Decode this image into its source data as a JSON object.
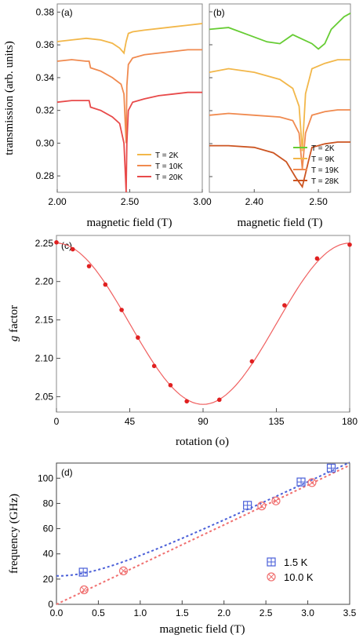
{
  "chart_data": [
    {
      "panel": "(a)",
      "type": "line",
      "xlabel": "magnetic field (T)",
      "ylabel": "transmission (arb. units)",
      "xlim": [
        2.0,
        3.0
      ],
      "ylim": [
        0.27,
        0.385
      ],
      "xticks": [
        "2.00",
        "2.50",
        "3.00"
      ],
      "yticks": [
        "0.28",
        "0.30",
        "0.32",
        "0.34",
        "0.36",
        "0.38"
      ],
      "legend": "bottom-right",
      "series": [
        {
          "name": "T = 2K",
          "color": "#f2b74a",
          "x": [
            2.0,
            2.1,
            2.2,
            2.3,
            2.38,
            2.43,
            2.46,
            2.475,
            2.49,
            2.52,
            2.6,
            2.7,
            2.8,
            2.9,
            3.0
          ],
          "y": [
            0.362,
            0.363,
            0.364,
            0.363,
            0.361,
            0.358,
            0.355,
            0.362,
            0.367,
            0.368,
            0.369,
            0.37,
            0.371,
            0.372,
            0.373
          ]
        },
        {
          "name": "T = 10K",
          "color": "#f08a4f",
          "x": [
            2.0,
            2.1,
            2.2,
            2.22,
            2.23,
            2.3,
            2.38,
            2.44,
            2.46,
            2.475,
            2.48,
            2.49,
            2.52,
            2.6,
            2.7,
            2.8,
            2.9,
            3.0
          ],
          "y": [
            0.35,
            0.351,
            0.35,
            0.35,
            0.346,
            0.344,
            0.34,
            0.336,
            0.33,
            0.3,
            0.335,
            0.348,
            0.352,
            0.354,
            0.355,
            0.356,
            0.357,
            0.357
          ]
        },
        {
          "name": "T = 20K",
          "color": "#e84a4a",
          "x": [
            2.0,
            2.1,
            2.2,
            2.22,
            2.23,
            2.3,
            2.38,
            2.43,
            2.46,
            2.47,
            2.475,
            2.48,
            2.49,
            2.52,
            2.6,
            2.7,
            2.8,
            2.9,
            3.0
          ],
          "y": [
            0.325,
            0.326,
            0.326,
            0.326,
            0.322,
            0.32,
            0.316,
            0.312,
            0.3,
            0.28,
            0.27,
            0.3,
            0.32,
            0.325,
            0.327,
            0.329,
            0.33,
            0.331,
            0.331
          ]
        }
      ]
    },
    {
      "panel": "(b)",
      "type": "line",
      "xlabel": "magnetic field (T)",
      "xlim": [
        2.33,
        2.55
      ],
      "xticks": [
        "2.40",
        "2.50"
      ],
      "legend": "bottom-right",
      "series": [
        {
          "name": "T = 2K",
          "color": "#66cc33",
          "x": [
            2.33,
            2.36,
            2.39,
            2.42,
            2.44,
            2.46,
            2.49,
            2.5,
            2.51,
            2.52,
            2.54,
            2.55
          ],
          "y": [
            0.88,
            0.89,
            0.85,
            0.81,
            0.8,
            0.85,
            0.8,
            0.77,
            0.8,
            0.88,
            0.95,
            0.97
          ]
        },
        {
          "name": "T = 9K",
          "color": "#f2b74a",
          "x": [
            2.33,
            2.36,
            2.4,
            2.44,
            2.46,
            2.47,
            2.475,
            2.48,
            2.49,
            2.51,
            2.53,
            2.55
          ],
          "y": [
            0.64,
            0.66,
            0.64,
            0.6,
            0.55,
            0.45,
            0.2,
            0.52,
            0.66,
            0.69,
            0.71,
            0.71
          ]
        },
        {
          "name": "T = 19K",
          "color": "#f08a4f",
          "x": [
            2.33,
            2.36,
            2.4,
            2.44,
            2.46,
            2.47,
            2.475,
            2.48,
            2.49,
            2.51,
            2.53,
            2.55
          ],
          "y": [
            0.4,
            0.41,
            0.4,
            0.39,
            0.37,
            0.3,
            0.1,
            0.3,
            0.4,
            0.42,
            0.43,
            0.43
          ]
        },
        {
          "name": "T = 28K",
          "color": "#cc5522",
          "x": [
            2.33,
            2.36,
            2.4,
            2.43,
            2.45,
            2.465,
            2.475,
            2.485,
            2.49,
            2.51,
            2.53,
            2.55
          ],
          "y": [
            0.23,
            0.23,
            0.22,
            0.19,
            0.14,
            0.05,
            0.0,
            0.15,
            0.22,
            0.24,
            0.25,
            0.25
          ]
        }
      ]
    },
    {
      "panel": "(c)",
      "type": "scatter",
      "xlabel": "rotation (o)",
      "ylabel_italic": "g",
      "ylabel_rest": " factor",
      "xlim": [
        0,
        180
      ],
      "ylim": [
        2.03,
        2.26
      ],
      "xticks": [
        "0",
        "45",
        "90",
        "135",
        "180"
      ],
      "yticks": [
        "2.05",
        "2.10",
        "2.15",
        "2.20",
        "2.25"
      ],
      "color": "#e02020",
      "x": [
        0,
        10,
        20,
        30,
        40,
        50,
        60,
        70,
        80,
        100,
        120,
        140,
        160,
        180
      ],
      "y": [
        2.251,
        2.242,
        2.22,
        2.196,
        2.163,
        2.127,
        2.09,
        2.065,
        2.044,
        2.046,
        2.096,
        2.169,
        2.23,
        2.248
      ],
      "fit": {
        "a": 2.04,
        "b": 0.21
      }
    },
    {
      "panel": "(d)",
      "type": "scatter",
      "xlabel": "magnetic field (T)",
      "ylabel": "frequency (GHz)",
      "xlim": [
        0,
        3.5
      ],
      "ylim": [
        0,
        112
      ],
      "xticks": [
        "0.0",
        "0.5",
        "1.0",
        "1.5",
        "2.0",
        "2.5",
        "3.0",
        "3.5"
      ],
      "yticks": [
        "0",
        "20",
        "40",
        "60",
        "80",
        "100"
      ],
      "legend": "right",
      "series": [
        {
          "name": "1.5 K",
          "color": "#4a5fd8",
          "marker": "boxplus",
          "x": [
            0.32,
            2.28,
            2.92,
            3.28
          ],
          "y": [
            25.5,
            78.5,
            97.0,
            108.0
          ],
          "fit": {
            "gap": 22.5,
            "slope": 31.5
          }
        },
        {
          "name": "10.0 K",
          "color": "#f07070",
          "marker": "circletimes",
          "x": [
            0.33,
            0.8,
            2.45,
            2.62,
            3.05
          ],
          "y": [
            11.5,
            26.5,
            78.0,
            82.0,
            96.5
          ],
          "fit": {
            "gap": 0,
            "slope": 31.5
          }
        }
      ]
    }
  ]
}
